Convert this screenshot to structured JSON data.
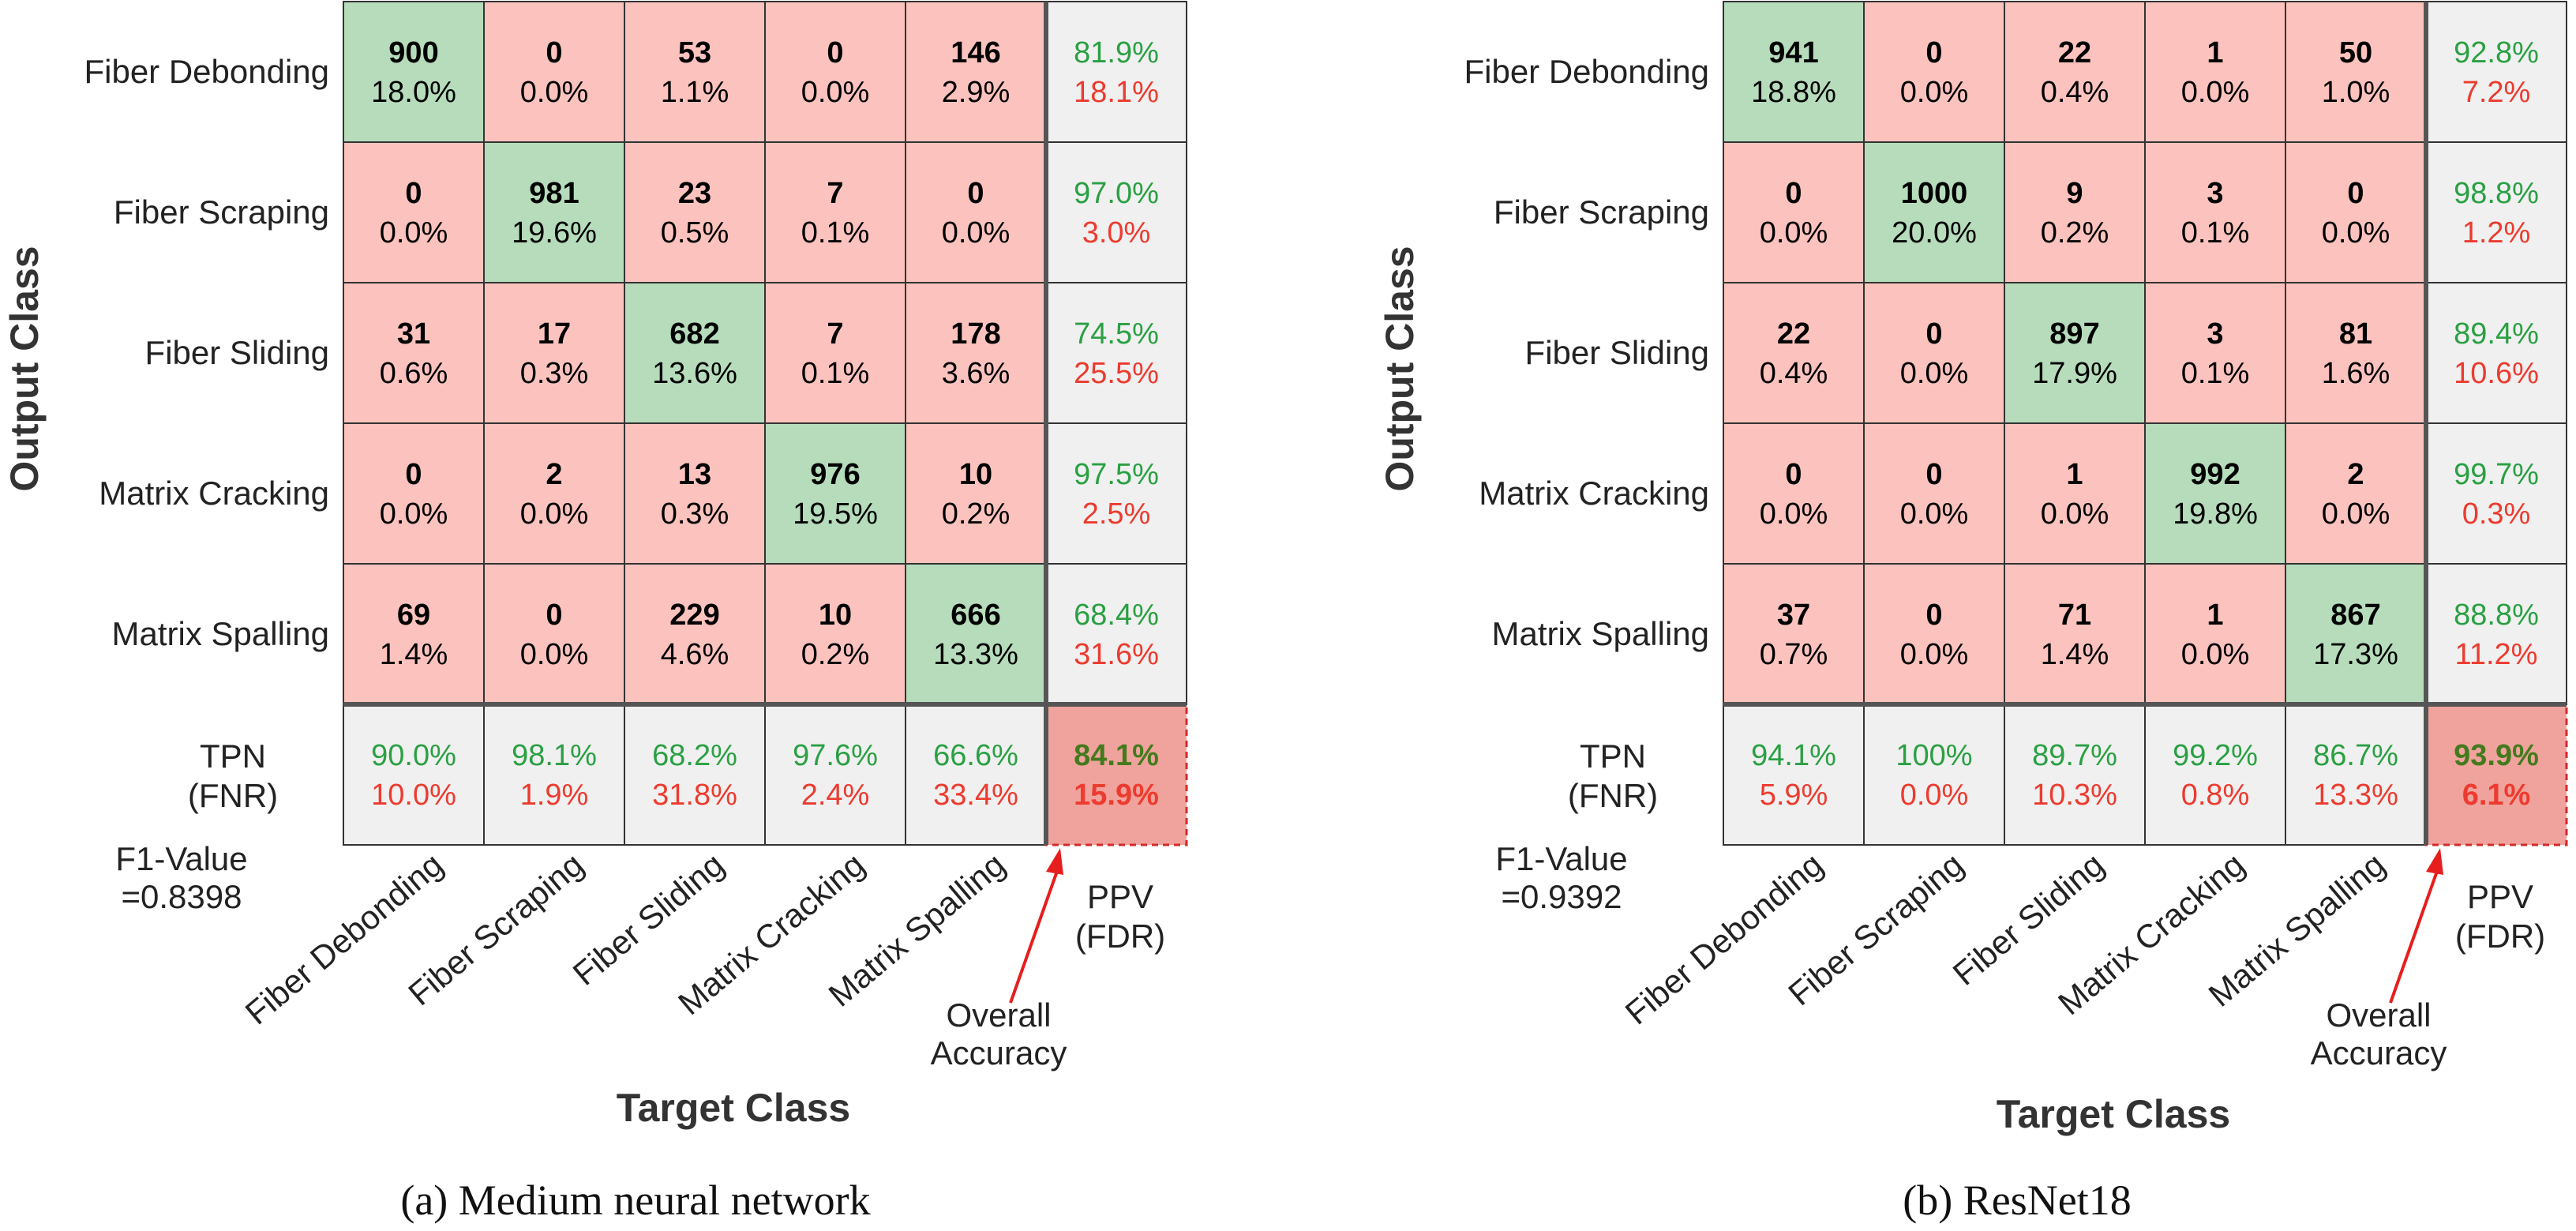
{
  "chart_data": [
    {
      "type": "heatmap",
      "title": "",
      "caption": "(a) Medium neural network",
      "xlabel": "Target Class",
      "ylabel": "Output Class",
      "classes": [
        "Fiber Debonding",
        "Fiber Scraping",
        "Fiber Sliding",
        "Matrix Cracking",
        "Matrix Spalling"
      ],
      "counts": [
        [
          900,
          0,
          53,
          0,
          146
        ],
        [
          0,
          981,
          23,
          7,
          0
        ],
        [
          31,
          17,
          682,
          7,
          178
        ],
        [
          0,
          2,
          13,
          976,
          10
        ],
        [
          69,
          0,
          229,
          10,
          666
        ]
      ],
      "percents": [
        [
          "18.0%",
          "0.0%",
          "1.1%",
          "0.0%",
          "2.9%"
        ],
        [
          "0.0%",
          "19.6%",
          "0.5%",
          "0.1%",
          "0.0%"
        ],
        [
          "0.6%",
          "0.3%",
          "13.6%",
          "0.1%",
          "3.6%"
        ],
        [
          "0.0%",
          "0.0%",
          "0.3%",
          "19.5%",
          "0.2%"
        ],
        [
          "1.4%",
          "0.0%",
          "4.6%",
          "0.2%",
          "13.3%"
        ]
      ],
      "ppv": [
        "81.9%",
        "97.0%",
        "74.5%",
        "97.5%",
        "68.4%"
      ],
      "fdr": [
        "18.1%",
        "3.0%",
        "25.5%",
        "2.5%",
        "31.6%"
      ],
      "tpr": [
        "90.0%",
        "98.1%",
        "68.2%",
        "97.6%",
        "66.6%"
      ],
      "fnr": [
        "10.0%",
        "1.9%",
        "31.8%",
        "2.4%",
        "33.4%"
      ],
      "overall_accuracy": "84.1%",
      "overall_error": "15.9%",
      "row_summary_label_1": "TPN",
      "row_summary_label_2": "(FNR)",
      "col_summary_label_1": "PPV",
      "col_summary_label_2": "(FDR)",
      "f1_label": "F1-Value",
      "f1_value": "=0.8398",
      "annotation_1": "Overall",
      "annotation_2": "Accuracy"
    },
    {
      "type": "heatmap",
      "title": "",
      "caption": "(b) ResNet18",
      "xlabel": "Target Class",
      "ylabel": "Output Class",
      "classes": [
        "Fiber Debonding",
        "Fiber Scraping",
        "Fiber Sliding",
        "Matrix Cracking",
        "Matrix Spalling"
      ],
      "counts": [
        [
          941,
          0,
          22,
          1,
          50
        ],
        [
          0,
          1000,
          9,
          3,
          0
        ],
        [
          22,
          0,
          897,
          3,
          81
        ],
        [
          0,
          0,
          1,
          992,
          2
        ],
        [
          37,
          0,
          71,
          1,
          867
        ]
      ],
      "percents": [
        [
          "18.8%",
          "0.0%",
          "0.4%",
          "0.0%",
          "1.0%"
        ],
        [
          "0.0%",
          "20.0%",
          "0.2%",
          "0.1%",
          "0.0%"
        ],
        [
          "0.4%",
          "0.0%",
          "17.9%",
          "0.1%",
          "1.6%"
        ],
        [
          "0.0%",
          "0.0%",
          "0.0%",
          "19.8%",
          "0.0%"
        ],
        [
          "0.7%",
          "0.0%",
          "1.4%",
          "0.0%",
          "17.3%"
        ]
      ],
      "ppv": [
        "92.8%",
        "98.8%",
        "89.4%",
        "99.7%",
        "88.8%"
      ],
      "fdr": [
        "7.2%",
        "1.2%",
        "10.6%",
        "0.3%",
        "11.2%"
      ],
      "tpr": [
        "94.1%",
        "100%",
        "89.7%",
        "99.2%",
        "86.7%"
      ],
      "fnr": [
        "5.9%",
        "0.0%",
        "10.3%",
        "0.8%",
        "13.3%"
      ],
      "overall_accuracy": "93.9%",
      "overall_error": "6.1%",
      "row_summary_label_1": "TPN",
      "row_summary_label_2": "(FNR)",
      "col_summary_label_1": "PPV",
      "col_summary_label_2": "(FDR)",
      "f1_label": "F1-Value",
      "f1_value": "=0.9392",
      "annotation_1": "Overall",
      "annotation_2": "Accuracy"
    }
  ],
  "colors": {
    "diag": "#b6dcbc",
    "offdiag": "#fcc3be",
    "summary": "#f0f0f0",
    "accuracy": "#f0a39c",
    "green_text": "#2aa043",
    "red_text": "#ec3b2f",
    "overall_green": "#447a1e",
    "border": "#333333",
    "arrow": "#e61e1e"
  }
}
